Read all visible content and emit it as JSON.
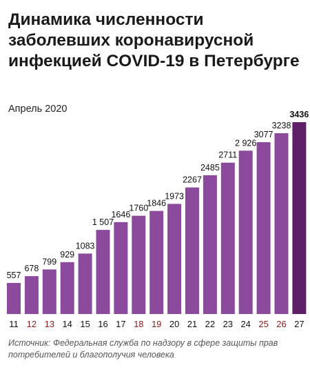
{
  "title": "Динамика численности заболевших коронавирусной инфекцией COVID-19 в Петербурге",
  "subtitle": "Апрель 2020",
  "source": "Источник: Федеральная служба по надзору в сфере защиты прав потребителей и благополучия человека",
  "colors": {
    "bar": "#8c4a9c",
    "bar_highlight": "#5e2168",
    "weekday_label": "#111111",
    "weekend_label": "#8b1a1a"
  },
  "chart_data": {
    "type": "bar",
    "categories": [
      "11",
      "12",
      "13",
      "14",
      "15",
      "16",
      "17",
      "18",
      "19",
      "20",
      "21",
      "22",
      "23",
      "24",
      "25",
      "26",
      "27"
    ],
    "values": [
      557,
      678,
      799,
      929,
      1083,
      1507,
      1646,
      1760,
      1846,
      1973,
      2267,
      2485,
      2711,
      2926,
      3077,
      3238,
      3436
    ],
    "value_labels": [
      "557",
      "678",
      "799",
      "929",
      "1083",
      "1 507",
      "1646",
      "1760",
      "1846",
      "1973",
      "2267",
      "2485",
      "2711",
      "2 926",
      "3077",
      "3238",
      "3436"
    ],
    "weekend_categories": [
      "12",
      "13",
      "18",
      "19",
      "25",
      "26"
    ],
    "highlight_category": "27",
    "ylim": [
      0,
      3436
    ],
    "grid": false,
    "legend": "none"
  }
}
